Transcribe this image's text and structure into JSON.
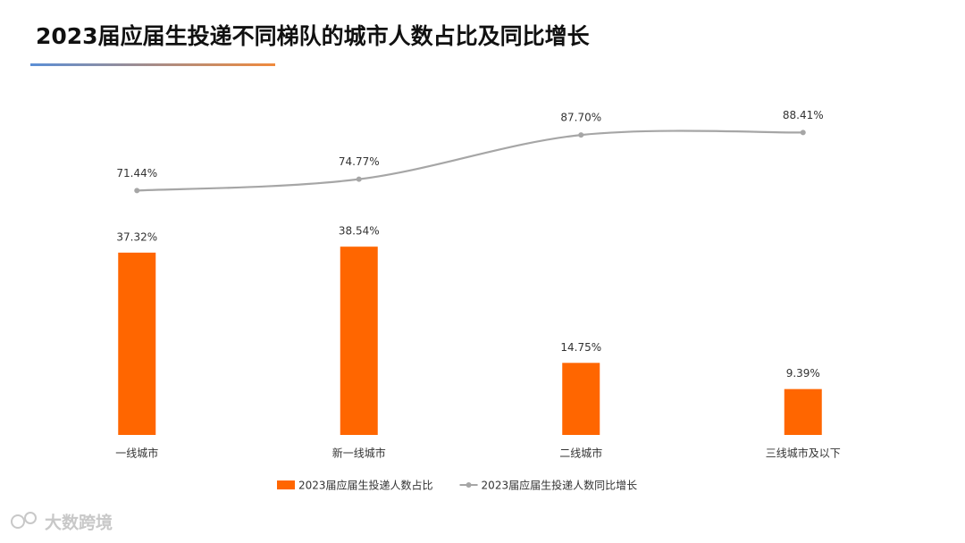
{
  "chart_data": {
    "type": "bar-line",
    "title": "2023届应届生投递不同梯队的城市人数占比及同比增长",
    "categories": [
      "一线城市",
      "新一线城市",
      "二线城市",
      "三线城市及以下"
    ],
    "series": [
      {
        "name": "2023届应届生投递人数占比",
        "type": "bar",
        "color": "#ff6600",
        "values": [
          37.32,
          38.54,
          14.75,
          9.39
        ],
        "value_labels": [
          "37.32%",
          "38.54%",
          "14.75%",
          "9.39%"
        ]
      },
      {
        "name": "2023届应届生投递人数同比增长",
        "type": "line",
        "color": "#a6a6a6",
        "axis": "y2",
        "smooth": true,
        "values": [
          71.44,
          74.77,
          87.7,
          88.41
        ],
        "value_labels": [
          "71.44%",
          "74.77%",
          "87.70%",
          "88.41%"
        ]
      }
    ],
    "watermark": "大数跨境"
  }
}
